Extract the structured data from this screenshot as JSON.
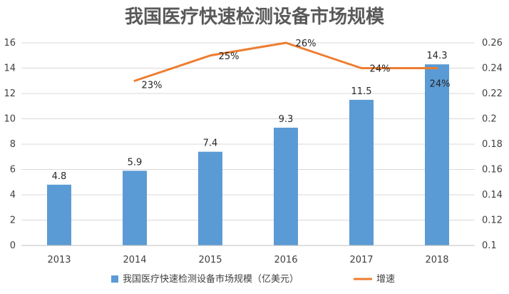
{
  "chart_data": {
    "type": "bar",
    "title": "我国医疗快速检测设备市场规模",
    "categories": [
      "2013",
      "2014",
      "2015",
      "2016",
      "2017",
      "2018"
    ],
    "series": [
      {
        "name": "我国医疗快速检测设备市场规模（亿美元）",
        "type": "bar",
        "axis": "left",
        "color": "#5b9bd5",
        "values": [
          4.8,
          5.9,
          7.4,
          9.3,
          11.5,
          14.3
        ],
        "labels": [
          "4.8",
          "5.9",
          "7.4",
          "9.3",
          "11.5",
          "14.3"
        ]
      },
      {
        "name": "增速",
        "type": "line",
        "axis": "right",
        "color": "#ed7d31",
        "values": [
          null,
          0.23,
          0.25,
          0.26,
          0.24,
          0.24
        ],
        "labels": [
          null,
          "23%",
          "25%",
          "26%",
          "24%",
          "24%"
        ]
      }
    ],
    "y_left": {
      "ylim": [
        0,
        16
      ],
      "ticks": [
        "0",
        "2",
        "4",
        "6",
        "8",
        "10",
        "12",
        "14",
        "16"
      ]
    },
    "y_right": {
      "ylim": [
        0.1,
        0.26
      ],
      "ticks": [
        "0.1",
        "0.12",
        "0.14",
        "0.16",
        "0.18",
        "0.2",
        "0.22",
        "0.24",
        "0.26"
      ]
    },
    "grid": true,
    "legend_position": "bottom"
  }
}
